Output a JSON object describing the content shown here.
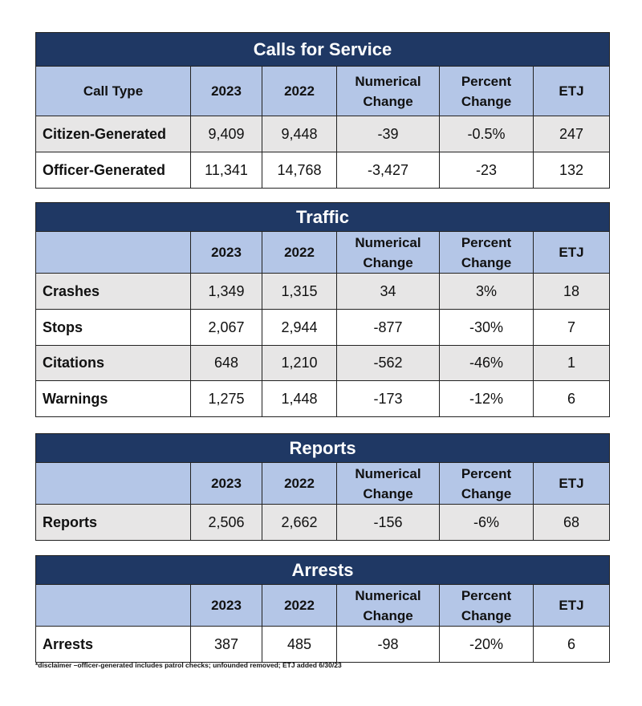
{
  "sections": [
    {
      "title": "Calls for Service",
      "headers": [
        "Call Type",
        "2023",
        "2022",
        "Numerical Change",
        "Percent Change",
        "ETJ"
      ],
      "rows": [
        [
          "Citizen-Generated",
          "9,409",
          "9,448",
          "-39",
          "-0.5%",
          "247"
        ],
        [
          "Officer-Generated",
          "11,341",
          "14,768",
          "-3,427",
          "-23",
          "132"
        ]
      ]
    },
    {
      "title": "Traffic",
      "headers": [
        "",
        "2023",
        "2022",
        "Numerical Change",
        "Percent Change",
        "ETJ"
      ],
      "rows": [
        [
          "Crashes",
          "1,349",
          "1,315",
          "34",
          "3%",
          "18"
        ],
        [
          "Stops",
          "2,067",
          "2,944",
          "-877",
          "-30%",
          "7"
        ],
        [
          "Citations",
          "648",
          "1,210",
          "-562",
          "-46%",
          "1"
        ],
        [
          "Warnings",
          "1,275",
          "1,448",
          "-173",
          "-12%",
          "6"
        ]
      ]
    },
    {
      "title": "Reports",
      "headers": [
        "",
        "2023",
        "2022",
        "Numerical Change",
        "Percent Change",
        "ETJ"
      ],
      "rows": [
        [
          "Reports",
          "2,506",
          "2,662",
          "-156",
          "-6%",
          "68"
        ]
      ]
    },
    {
      "title": "Arrests",
      "headers": [
        "",
        "2023",
        "2022",
        "Numerical Change",
        "Percent Change",
        "ETJ"
      ],
      "rows": [
        [
          "Arrests",
          "387",
          "485",
          "-98",
          "-20%",
          "6"
        ]
      ]
    }
  ],
  "disclaimer": "*disclaimer –officer-generated includes patrol checks; unfounded removed; ETJ added 6/30/23",
  "colors": {
    "title_bg": "#1f3864",
    "header_bg": "#b4c6e7",
    "shade_bg": "#e7e6e6"
  }
}
